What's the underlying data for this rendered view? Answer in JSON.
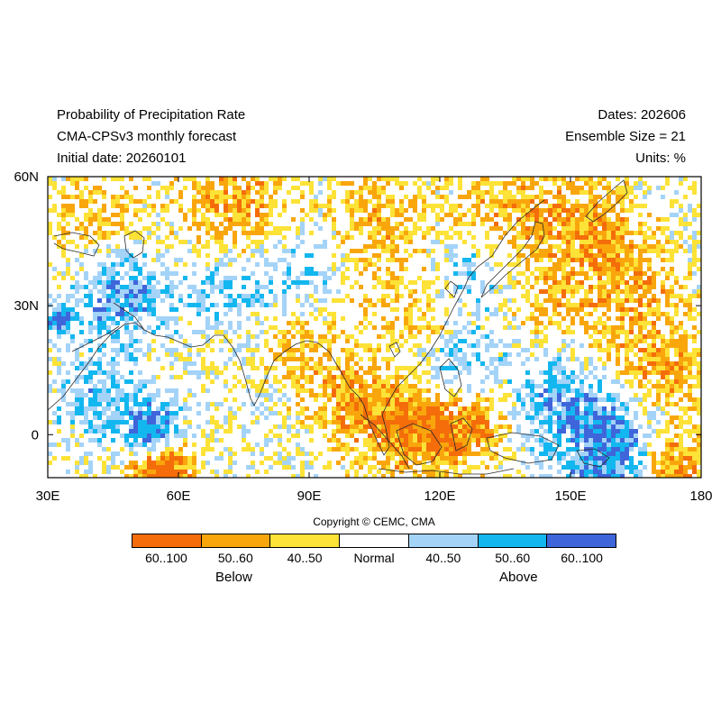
{
  "header": {
    "title": "Probability of Precipitation Rate",
    "model": "CMA-CPSv3 monthly forecast",
    "initial_date": "Initial date: 20260101",
    "dates": "Dates: 202606",
    "ensemble": "Ensemble Size = 21",
    "units": "Units: %"
  },
  "map": {
    "lon_range": [
      30,
      180
    ],
    "lat_range": [
      -10,
      60
    ],
    "lon_ticks": [
      "30E",
      "60E",
      "90E",
      "120E",
      "150E",
      "180"
    ],
    "lat_ticks": [
      "60N",
      "30N",
      "0"
    ],
    "lon_tick_values": [
      30,
      60,
      90,
      120,
      150,
      180
    ],
    "lat_tick_values": [
      60,
      30,
      0
    ]
  },
  "copyright": "Copyright © CEMC, CMA",
  "legend": {
    "categories": [
      {
        "label": "60..100",
        "color": "#f46d0a"
      },
      {
        "label": "50..60",
        "color": "#f9a60c"
      },
      {
        "label": "40..50",
        "color": "#fde237"
      },
      {
        "label": "Normal",
        "color": "#ffffff"
      },
      {
        "label": "40..50",
        "color": "#a4d3f8"
      },
      {
        "label": "50..60",
        "color": "#13b7ef"
      },
      {
        "label": "60..100",
        "color": "#3f65da"
      }
    ],
    "below_label": "Below",
    "above_label": "Above"
  }
}
